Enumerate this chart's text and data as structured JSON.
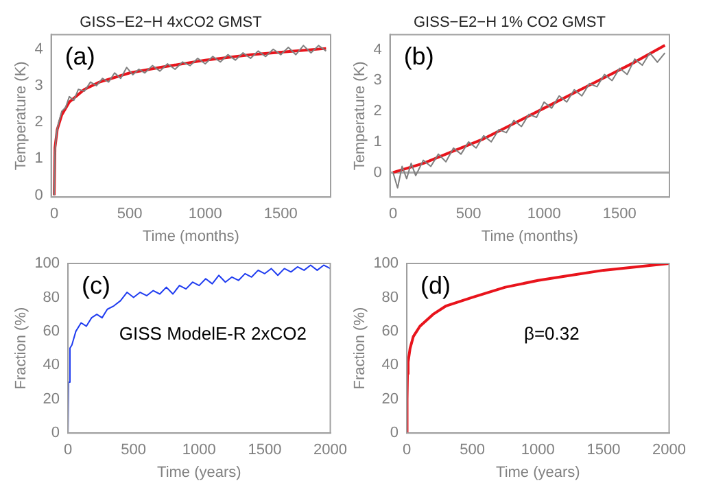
{
  "chart_data": [
    {
      "type": "line",
      "title": "GISS−E2−H 4xCO2 GMST",
      "xlabel": "Time (months)",
      "ylabel": "Temperature (K)",
      "annotations": [
        "(a)"
      ],
      "xlim": [
        -20,
        1830
      ],
      "xticks": [
        0,
        500,
        1000,
        1500
      ],
      "ylim": [
        -0.05,
        4.4
      ],
      "yticks": [
        0,
        1,
        2,
        3,
        4
      ],
      "marker": "none",
      "series": [
        {
          "color": "#7f7f7f",
          "x": [
            0,
            5,
            15,
            30,
            50,
            75,
            100,
            130,
            160,
            200,
            240,
            280,
            320,
            360,
            400,
            440,
            480,
            520,
            560,
            600,
            650,
            700,
            750,
            800,
            850,
            900,
            950,
            1000,
            1050,
            1100,
            1150,
            1200,
            1250,
            1300,
            1350,
            1400,
            1450,
            1500,
            1550,
            1600,
            1650,
            1700,
            1750,
            1800
          ],
          "values": [
            0,
            1.2,
            1.7,
            2.0,
            2.3,
            2.4,
            2.7,
            2.6,
            2.9,
            2.85,
            3.1,
            3.0,
            3.2,
            3.1,
            3.35,
            3.2,
            3.5,
            3.3,
            3.45,
            3.35,
            3.55,
            3.4,
            3.6,
            3.45,
            3.65,
            3.55,
            3.75,
            3.6,
            3.8,
            3.65,
            3.85,
            3.7,
            3.9,
            3.75,
            3.95,
            3.8,
            4.0,
            3.85,
            4.05,
            3.85,
            4.1,
            3.9,
            4.1,
            3.95
          ]
        },
        {
          "color": "#e8141c",
          "x": [
            0,
            5,
            20,
            50,
            100,
            200,
            300,
            500,
            700,
            1000,
            1300,
            1600,
            1800
          ],
          "values": [
            0,
            1.3,
            1.8,
            2.2,
            2.55,
            2.9,
            3.1,
            3.35,
            3.5,
            3.7,
            3.85,
            3.95,
            4.02
          ]
        }
      ]
    },
    {
      "type": "line",
      "title": "GISS−E2−H 1% CO2 GMST",
      "xlabel": "Time (months)",
      "ylabel": "Temperature (K)",
      "annotations": [
        "(b)"
      ],
      "xlim": [
        -20,
        1830
      ],
      "xticks": [
        0,
        500,
        1000,
        1500
      ],
      "ylim": [
        -0.8,
        4.5
      ],
      "yticks": [
        0,
        1,
        2,
        3,
        4
      ],
      "marker": "none",
      "ref_lines": [
        {
          "axis": "y",
          "value": 0,
          "color": "#a6a6a6"
        }
      ],
      "series": [
        {
          "color": "#7f7f7f",
          "x": [
            0,
            30,
            60,
            90,
            120,
            150,
            200,
            250,
            300,
            350,
            400,
            450,
            500,
            550,
            600,
            650,
            700,
            750,
            800,
            850,
            900,
            950,
            1000,
            1050,
            1100,
            1150,
            1200,
            1250,
            1300,
            1350,
            1400,
            1450,
            1500,
            1550,
            1600,
            1650,
            1700,
            1750,
            1800
          ],
          "values": [
            0,
            -0.5,
            0.2,
            -0.2,
            0.3,
            -0.1,
            0.4,
            0.2,
            0.6,
            0.35,
            0.8,
            0.6,
            1.0,
            0.8,
            1.2,
            1.0,
            1.4,
            1.3,
            1.7,
            1.5,
            1.9,
            1.8,
            2.3,
            2.1,
            2.5,
            2.3,
            2.7,
            2.5,
            2.9,
            2.8,
            3.2,
            3.0,
            3.4,
            3.2,
            3.7,
            3.5,
            3.9,
            3.6,
            3.9
          ]
        },
        {
          "color": "#e8141c",
          "x": [
            0,
            200,
            400,
            600,
            800,
            1000,
            1200,
            1400,
            1600,
            1800
          ],
          "values": [
            0,
            0.3,
            0.7,
            1.1,
            1.6,
            2.1,
            2.6,
            3.1,
            3.6,
            4.15
          ]
        }
      ]
    },
    {
      "type": "line",
      "xlabel": "Time (years)",
      "ylabel": "Fraction (%)",
      "annotations": [
        "(c)",
        "GISS ModelE-R 2xCO2"
      ],
      "xlim": [
        0,
        2000
      ],
      "xticks": [
        0,
        500,
        1000,
        1500,
        2000
      ],
      "ylim": [
        0,
        100
      ],
      "yticks": [
        0,
        20,
        40,
        60,
        80,
        100
      ],
      "marker": "none",
      "series": [
        {
          "color": "#1f3cf0",
          "x": [
            0,
            5,
            15,
            30,
            60,
            100,
            140,
            180,
            220,
            260,
            300,
            350,
            400,
            450,
            500,
            550,
            600,
            650,
            700,
            750,
            800,
            850,
            900,
            950,
            1000,
            1050,
            1100,
            1150,
            1200,
            1250,
            1300,
            1350,
            1400,
            1450,
            1500,
            1550,
            1600,
            1650,
            1700,
            1750,
            1800,
            1850,
            1900,
            1950,
            2000
          ],
          "values": [
            0,
            30,
            50,
            52,
            60,
            65,
            63,
            68,
            70,
            68,
            73,
            75,
            78,
            83,
            80,
            83,
            81,
            84,
            82,
            86,
            82,
            87,
            85,
            89,
            87,
            91,
            88,
            93,
            89,
            92,
            90,
            94,
            92,
            96,
            94,
            97,
            93,
            97,
            95,
            98,
            96,
            99,
            96,
            99,
            97
          ]
        }
      ]
    },
    {
      "type": "line",
      "xlabel": "Time (years)",
      "ylabel": "Fraction (%)",
      "annotations": [
        "(d)",
        "β=0.32"
      ],
      "xlim": [
        0,
        2000
      ],
      "xticks": [
        0,
        500,
        1000,
        1500,
        2000
      ],
      "ylim": [
        0,
        100
      ],
      "yticks": [
        0,
        20,
        40,
        60,
        80,
        100
      ],
      "marker": "none",
      "series": [
        {
          "color": "#e8141c",
          "x": [
            0,
            2,
            5,
            10,
            25,
            50,
            100,
            200,
            300,
            500,
            750,
            1000,
            1250,
            1500,
            1750,
            2000
          ],
          "values": [
            0,
            20,
            35,
            42,
            50,
            57,
            63,
            70,
            75,
            80,
            86,
            90,
            93,
            96,
            98,
            100
          ]
        }
      ]
    }
  ]
}
